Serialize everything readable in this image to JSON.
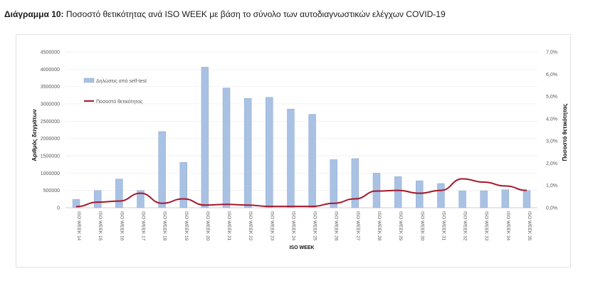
{
  "header": {
    "label": "Διάγραμμα 10:",
    "text": "Ποσοστό θετικότητας ανά ISO WEEK με βάση το σύνολο των αυτοδιαγνωστικών ελέγχων COVID-19"
  },
  "colors": {
    "bar": "#a9c1e3",
    "bar_stroke": "#8eaad4",
    "line": "#a5182b"
  },
  "chart_data": {
    "type": "bar",
    "title": "Ποσοστό θετικότητας ανά ISO WEEK με βάση το σύνολο των αυτοδιαγνωστικών ελέγχων COVID-19",
    "xlabel": "ISO WEEK",
    "ylabel": "Αριθμός δειγμάτων",
    "y2label": "Ποσοστό θετικότητας",
    "ylim": [
      0,
      4500000
    ],
    "y2lim": [
      0,
      7
    ],
    "yticks": [
      "0",
      "500000",
      "1000000",
      "1500000",
      "2000000",
      "2500000",
      "3000000",
      "3500000",
      "4000000",
      "4500000"
    ],
    "y2ticks": [
      "0,0%",
      "1,0%",
      "2,0%",
      "3,0%",
      "4,0%",
      "5,0%",
      "6,0%",
      "7,0%"
    ],
    "legend_position": "top-left",
    "categories": [
      "ISO WEEK 14",
      "ISO WEEK 15",
      "ISO WEEK 16",
      "ISO WEEK 17",
      "ISO WEEK 18",
      "ISO WEEK 19",
      "ISO WEEK 20",
      "ISO WEEK 21",
      "ISO WEEK 22",
      "ISO WEEK 23",
      "ISO WEEK 24",
      "ISO WEEK 25",
      "ISO WEEK 26",
      "ISO WEEK 27",
      "ISO WEEK 28",
      "ISO WEEK 29",
      "ISO WEEK 30",
      "ISO WEEK 31",
      "ISO WEEK 32",
      "ISO WEEK 33",
      "ISO WEEK 34",
      "ISO WEEK 35"
    ],
    "series": [
      {
        "name": "Δηλώσεις από self-test",
        "type": "bar",
        "axis": "left",
        "values": [
          240000,
          500000,
          830000,
          500000,
          2200000,
          1310000,
          4060000,
          3460000,
          3160000,
          3190000,
          2850000,
          2700000,
          1390000,
          1420000,
          1000000,
          900000,
          780000,
          700000,
          490000,
          490000,
          520000,
          500000
        ]
      },
      {
        "name": "Ποσοστό θετικότητας",
        "type": "line",
        "axis": "right",
        "values": [
          0.05,
          0.25,
          0.3,
          0.65,
          0.2,
          0.4,
          0.12,
          0.15,
          0.12,
          0.06,
          0.06,
          0.06,
          0.2,
          0.4,
          0.75,
          0.78,
          0.65,
          0.78,
          1.3,
          1.15,
          0.98,
          0.78
        ]
      }
    ]
  }
}
